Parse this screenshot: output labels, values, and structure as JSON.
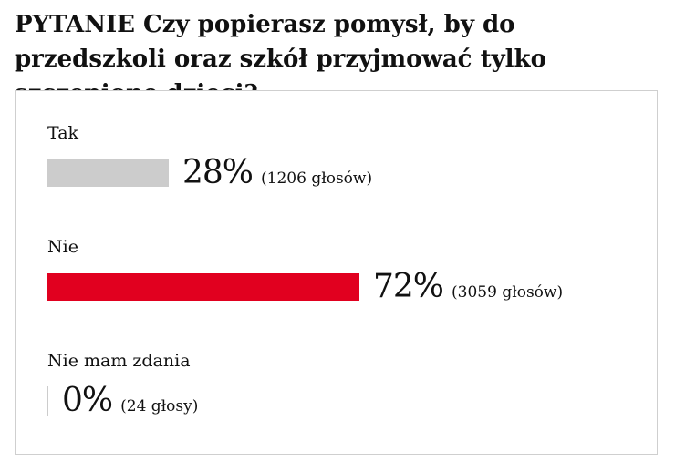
{
  "question": {
    "prefix": "PYTANIE",
    "text": "Czy popierasz pomysł, by do przedszkoli oraz szkół przyjmować tylko szczepione dzieci?"
  },
  "colors": {
    "tak": "#cccccc",
    "nie": "#e1001f",
    "nie_mam_zdania": "#cccccc"
  },
  "chart_data": {
    "type": "bar",
    "orientation": "horizontal",
    "categories": [
      "Tak",
      "Nie",
      "Nie mam zdania"
    ],
    "values": [
      28,
      72,
      0
    ],
    "vote_counts": [
      1206,
      3059,
      24
    ],
    "value_labels": [
      "28%",
      "72%",
      "0%"
    ],
    "count_labels": [
      "(1206 głosów)",
      "(3059 głosów)",
      "(24 głosy)"
    ],
    "xlim": [
      0,
      100
    ]
  }
}
